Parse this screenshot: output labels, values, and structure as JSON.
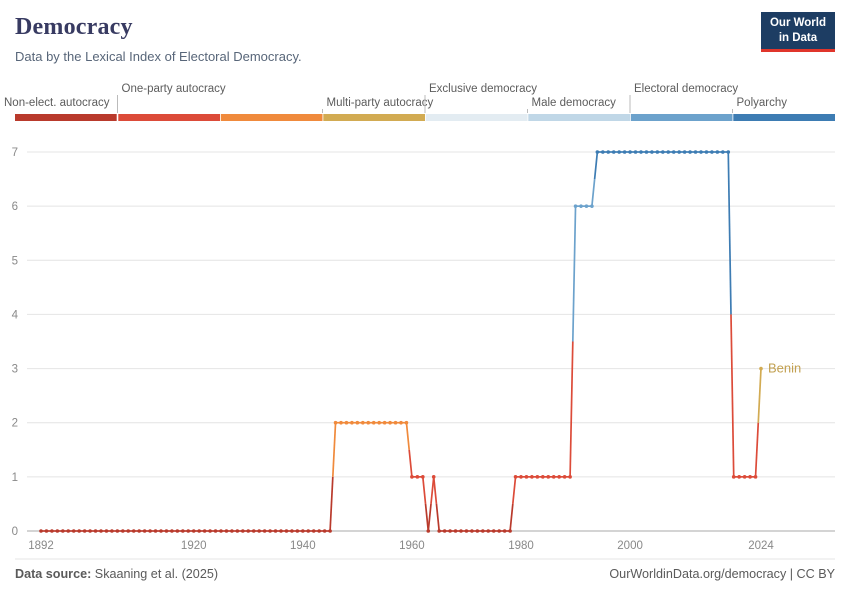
{
  "header": {
    "title": "Democracy",
    "subtitle": "Data by the Lexical Index of Electoral Democracy.",
    "logo": {
      "line1": "Our World",
      "line2": "in Data",
      "bg": "#1d3d63",
      "accent": "#e0352b"
    }
  },
  "chart_data": {
    "type": "line",
    "title": "Democracy",
    "subtitle": "Data by the Lexical Index of Electoral Democracy.",
    "entity": "Benin",
    "entity_label": "Benin",
    "entity_label_color": "#c2a050",
    "xlim": [
      1892,
      2024
    ],
    "ylim": [
      0,
      7
    ],
    "grid": true,
    "x_ticks": [
      1892,
      1920,
      1940,
      1960,
      1980,
      2000,
      2024
    ],
    "y_ticks": [
      0,
      1,
      2,
      3,
      4,
      5,
      6,
      7
    ],
    "value_colors": [
      "#b93a2c",
      "#dc4b39",
      "#f08a3c",
      "#d2ab52",
      "#e3ecf2",
      "#c0d7e7",
      "#6ca2cc",
      "#3d7cb3"
    ],
    "segments": [
      {
        "start_year": 1892,
        "end_year": 1945,
        "value": 0
      },
      {
        "start_year": 1946,
        "end_year": 1959,
        "value": 2
      },
      {
        "start_year": 1960,
        "end_year": 1962,
        "value": 1
      },
      {
        "start_year": 1963,
        "end_year": 1963,
        "value": 0
      },
      {
        "start_year": 1964,
        "end_year": 1964,
        "value": 1
      },
      {
        "start_year": 1965,
        "end_year": 1978,
        "value": 0
      },
      {
        "start_year": 1979,
        "end_year": 1989,
        "value": 1
      },
      {
        "start_year": 1990,
        "end_year": 1993,
        "value": 6
      },
      {
        "start_year": 1994,
        "end_year": 2018,
        "value": 7
      },
      {
        "start_year": 2019,
        "end_year": 2023,
        "value": 1
      },
      {
        "start_year": 2024,
        "end_year": 2024,
        "value": 3
      }
    ],
    "legend": {
      "labels": [
        {
          "label": "Non-elect. autocracy",
          "bin": 0,
          "row": "bottom"
        },
        {
          "label": "One-party autocracy",
          "bin": 1,
          "row": "top"
        },
        {
          "label": "Multi-party autocracy",
          "bin": 3,
          "row": "bottom"
        },
        {
          "label": "Exclusive democracy",
          "bin": 4,
          "row": "top"
        },
        {
          "label": "Male democracy",
          "bin": 5,
          "row": "bottom"
        },
        {
          "label": "Electoral democracy",
          "bin": 6,
          "row": "top"
        },
        {
          "label": "Polyarchy",
          "bin": 7,
          "row": "bottom"
        }
      ]
    }
  },
  "footer": {
    "source_label": "Data source:",
    "source_value": " Skaaning et al. (2025)",
    "credit": "OurWorldinData.org/democracy | CC BY"
  }
}
